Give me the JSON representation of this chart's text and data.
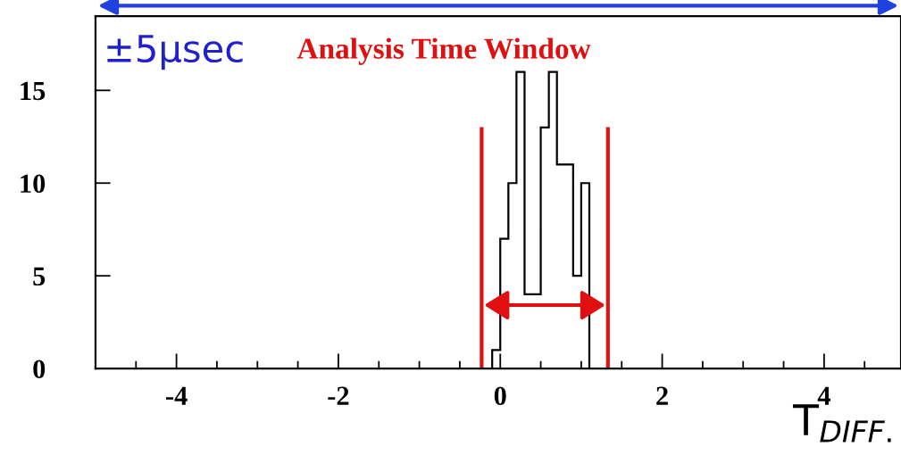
{
  "chart_data": {
    "type": "histogram",
    "xlabel": "T$_{DIFF.}$",
    "bins": [
      -0.1,
      0,
      0.1,
      0.2,
      0.3,
      0.4,
      0.5,
      0.6,
      0.7,
      0.8,
      0.9,
      1.0,
      1.1
    ],
    "values": [
      1,
      7,
      10,
      16,
      4,
      4,
      13,
      16,
      11,
      11,
      5,
      10
    ],
    "color": "#000000",
    "xlim": [
      -5,
      4.95
    ],
    "ylim": [
      0,
      19
    ],
    "xticks": [
      -4,
      -2,
      0,
      2,
      4
    ],
    "yticks": [
      0,
      5,
      10,
      15
    ],
    "ref_lines": [
      {
        "axis": "x",
        "value": -0.23,
        "label": null,
        "color": "#e01010"
      },
      {
        "axis": "x",
        "value": 1.33,
        "label": null,
        "color": "#e01010"
      }
    ],
    "annotations": [
      "±5µsec",
      "Analysis Time Window"
    ],
    "grid": false
  }
}
